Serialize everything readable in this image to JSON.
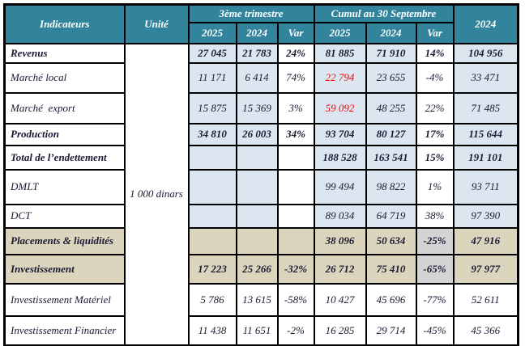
{
  "colors": {
    "header_teal": "#31849B",
    "cell_light_blue": "#DCE6F1",
    "cell_beige": "#DBD5BD",
    "cell_gray": "#D4D4D4",
    "highlight_red": "#FF0000",
    "border_black": "#000000"
  },
  "table": {
    "header": {
      "indicateurs": "Indicateurs",
      "unite": "Unité",
      "trimestre": "3ème trimestre",
      "cumul": "Cumul au 30 Septembre",
      "year2024": "2024",
      "sub": [
        "2025",
        "2024",
        "Var",
        "2025",
        "2024",
        "Var"
      ]
    },
    "unit_value": "1 000 dinars",
    "rows": [
      {
        "label": "Revenus",
        "bold": true,
        "style": "blue",
        "cells": [
          "27 045",
          "21 783",
          "24%",
          "81 885",
          "71 910",
          "14%",
          "104 956"
        ]
      },
      {
        "label": "Marché local",
        "bold": false,
        "style": "blue",
        "red": [
          3
        ],
        "cells": [
          "11 171",
          "6 414",
          "74%",
          "22 794",
          "23 655",
          "-4%",
          "33 471"
        ]
      },
      {
        "label": "Marché  export",
        "bold": false,
        "style": "blue",
        "red": [
          3
        ],
        "cells": [
          "15 875",
          "15 369",
          "3%",
          "59 092",
          "48 255",
          "22%",
          "71 485"
        ]
      },
      {
        "label": "Production",
        "bold": true,
        "style": "blue",
        "cells": [
          "34 810",
          "26 003",
          "34%",
          "93 704",
          "80 127",
          "17%",
          "115 644"
        ]
      },
      {
        "label": "Total de l’endettement",
        "bold": true,
        "style": "blue",
        "cells": [
          "",
          "",
          "",
          "188 528",
          "163 541",
          "15%",
          "191 101"
        ]
      },
      {
        "label": "DMLT",
        "bold": false,
        "style": "blue",
        "cells": [
          "",
          "",
          "",
          "99 494",
          "98 822",
          "1%",
          "93 711"
        ]
      },
      {
        "label": "DCT",
        "bold": false,
        "style": "blue",
        "cells": [
          "",
          "",
          "",
          "89 034",
          "64 719",
          "38%",
          "97 390"
        ]
      },
      {
        "label": "Placements & liquidités",
        "bold": true,
        "style": "beige",
        "cells": [
          "",
          "",
          "",
          "38 096",
          "50 634",
          "-25%",
          "47 916"
        ]
      },
      {
        "label": "Investissement",
        "bold": true,
        "style": "beige",
        "cells": [
          "17 223",
          "25 266",
          "-32%",
          "26 712",
          "75 410",
          "-65%",
          "97 977"
        ]
      },
      {
        "label": "Investissement Matériel",
        "bold": false,
        "style": "white",
        "cells": [
          "5 786",
          "13 615",
          "-58%",
          "10 427",
          "45 696",
          "-77%",
          "52 611"
        ]
      },
      {
        "label": "Investissement Financier",
        "bold": false,
        "style": "white",
        "cells": [
          "11 438",
          "11 651",
          "-2%",
          "16 285",
          "29 714",
          "-45%",
          "45 366"
        ]
      }
    ]
  }
}
